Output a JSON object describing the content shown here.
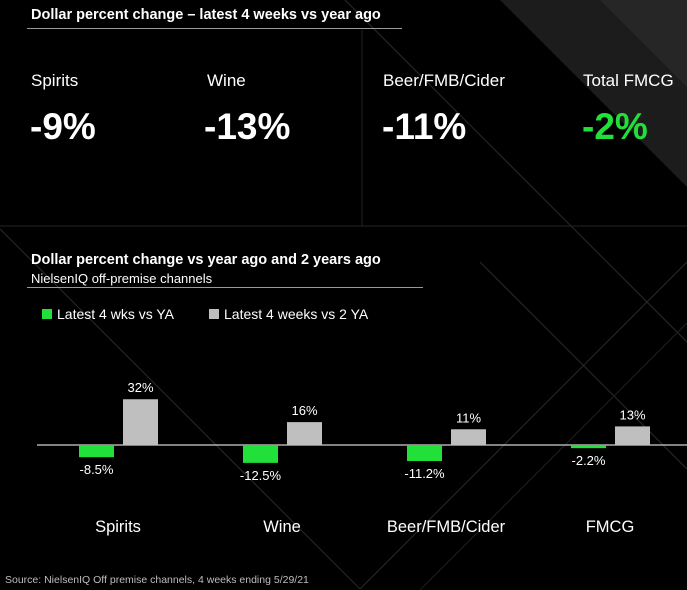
{
  "colors": {
    "background": "#000000",
    "accent_green": "#22e03a",
    "series_gray": "#bfbfbf",
    "rule": "#9a9a9a"
  },
  "top_section": {
    "title": "Dollar percent change – latest 4 weeks vs year ago",
    "kpis": [
      {
        "label": "Spirits",
        "value": "-9%"
      },
      {
        "label": "Wine",
        "value": "-13%"
      },
      {
        "label": "Beer/FMB/Cider",
        "value": "-11%"
      },
      {
        "label": "Total FMCG",
        "value": "-2%"
      }
    ]
  },
  "chart_section": {
    "title": "Dollar percent change vs year ago and 2 years ago",
    "subtitle": "NielsenIQ off-premise channels"
  },
  "chart_data": {
    "type": "bar",
    "categories": [
      "Spirits",
      "Wine",
      "Beer/FMB/Cider",
      "FMCG"
    ],
    "series": [
      {
        "name": "Latest 4 wks vs YA",
        "values": [
          -8.5,
          -12.5,
          -11.2,
          -2.2
        ],
        "labels": [
          "-8.5%",
          "-12.5%",
          "-11.2%",
          "-2.2%"
        ],
        "color": "#22e03a"
      },
      {
        "name": "Latest 4 weeks vs 2 YA",
        "values": [
          32,
          16,
          11,
          13
        ],
        "labels": [
          "32%",
          "16%",
          "11%",
          "13%"
        ],
        "color": "#bfbfbf"
      }
    ],
    "legend": "top-left",
    "grid": false,
    "ylim": [
      -20,
      35
    ]
  },
  "source": "Source: NielsenIQ Off premise channels, 4 weeks ending 5/29/21"
}
